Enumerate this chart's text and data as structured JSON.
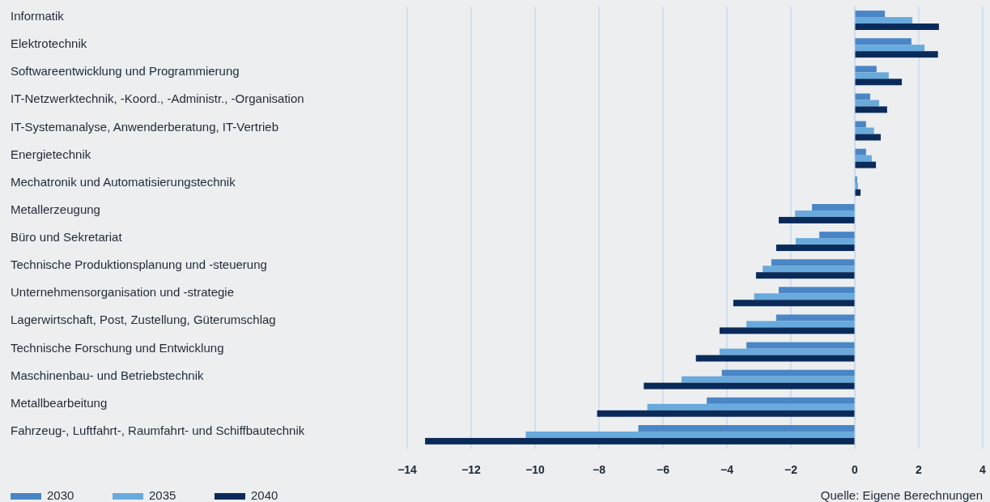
{
  "chart_data": {
    "type": "bar",
    "orientation": "horizontal",
    "categories": [
      "Informatik",
      "Elektrotechnik",
      "Softwareentwicklung und Programmierung",
      "IT-Netzwerktechnik, -Koord., -Administr., -Organisation",
      "IT-Systemanalyse, Anwenderberatung, IT-Vertrieb",
      "Energietechnik",
      "Mechatronik und Automatisierungstechnik",
      "Metallerzeugung",
      "Büro und Sekretariat",
      "Technische Produktionsplanung und -steuerung",
      "Unternehmensorganisation und -strategie",
      "Lagerwirtschaft, Post, Zustellung, Güterumschlag",
      "Technische Forschung und Entwicklung",
      "Maschinenbau- und Betriebstechnik",
      "Metallbearbeitung",
      "Fahrzeug-, Luftfahrt-, Raumfahrt- und Schiffbautechnik"
    ],
    "series": [
      {
        "name": "2030",
        "color": "#4a86c5",
        "values": [
          0.94,
          1.77,
          0.68,
          0.48,
          0.35,
          0.35,
          0.07,
          -1.34,
          -1.11,
          -2.61,
          -2.38,
          -2.46,
          -3.39,
          -4.16,
          -4.63,
          -6.77
        ]
      },
      {
        "name": "2035",
        "color": "#69aadc",
        "values": [
          1.8,
          2.18,
          1.06,
          0.76,
          0.6,
          0.53,
          0.1,
          -1.87,
          -1.85,
          -2.88,
          -3.15,
          -3.39,
          -4.23,
          -5.42,
          -6.49,
          -10.29
        ]
      },
      {
        "name": "2040",
        "color": "#0a2b5a",
        "values": [
          2.63,
          2.6,
          1.47,
          1.01,
          0.81,
          0.66,
          0.18,
          -2.38,
          -2.46,
          -3.09,
          -3.8,
          -4.23,
          -4.97,
          -6.6,
          -8.06,
          -13.44
        ]
      }
    ],
    "xlim": [
      -14,
      4
    ],
    "xticks": [
      {
        "value": -14,
        "label": "−14"
      },
      {
        "value": -12,
        "label": "−12"
      },
      {
        "value": -10,
        "label": "−10"
      },
      {
        "value": -8,
        "label": "−8"
      },
      {
        "value": -6,
        "label": "−6"
      },
      {
        "value": -4,
        "label": "−4"
      },
      {
        "value": -2,
        "label": "−2"
      },
      0,
      2,
      4
    ],
    "grid": "x",
    "legend": "bottom left",
    "annotations": [
      "Quelle: Eigene Berechnungen"
    ]
  }
}
